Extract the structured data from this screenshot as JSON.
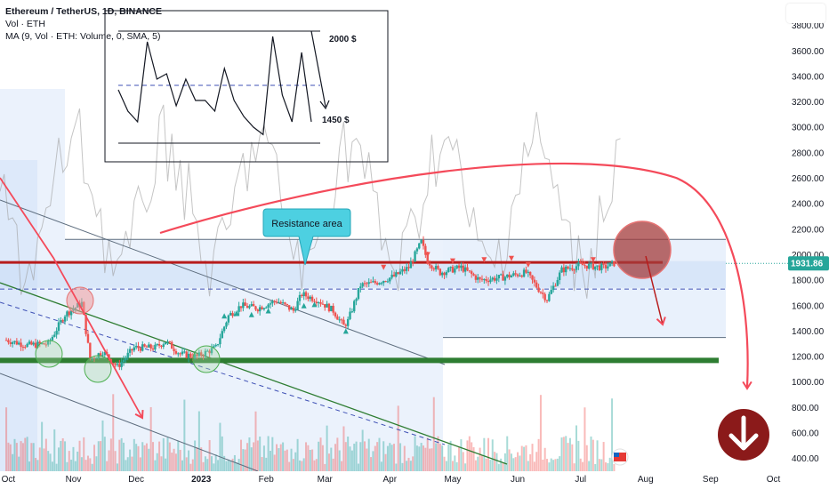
{
  "legend": {
    "symbol": "Ethereum / TetherUS, 1D, BINANCE",
    "volume": "Vol · ETH",
    "ma": "MA (9, Vol · ETH: Volume, 0, SMA, 5)"
  },
  "colors": {
    "up": "#26a69a",
    "down": "#ef5350",
    "resistance": "#b71c1c",
    "support": "#2e7d32",
    "arrow": "#f44a5a",
    "callout": "#4dd0e1",
    "price_badge": "#26a69a",
    "sell_badge": "#8b1a1a"
  },
  "chart_data": {
    "type": "candlestick",
    "y_axis": {
      "ticks": [
        400,
        600,
        800,
        1000,
        1200,
        1400,
        1600,
        1800,
        2000,
        2200,
        2400,
        2600,
        2800,
        3000,
        3200,
        3400,
        3600,
        3800
      ],
      "labels": [
        "400.00",
        "600.00",
        "800.00",
        "1000.00",
        "1200.00",
        "1400.00",
        "1600.00",
        "1800.00",
        "2000.00",
        "2200.00",
        "2400.00",
        "2600.00",
        "2800.00",
        "3000.00",
        "3200.00",
        "3400.00",
        "3600.00",
        "3800.00"
      ],
      "range": [
        300,
        4000
      ]
    },
    "x_axis": {
      "labels": [
        "Oct",
        "Nov",
        "Dec",
        "2023",
        "Feb",
        "Mar",
        "Apr",
        "May",
        "Jun",
        "Jul",
        "Aug",
        "Sep",
        "Oct"
      ]
    },
    "x_range": [
      "2022-09-27",
      "2023-10-08"
    ],
    "current_price": {
      "value": 1931.86,
      "label": "1931.86"
    },
    "price_path": [
      [
        "2022-09-30",
        1330
      ],
      [
        "2022-10-10",
        1290
      ],
      [
        "2022-10-20",
        1300
      ],
      [
        "2022-10-28",
        1530
      ],
      [
        "2022-11-05",
        1620
      ],
      [
        "2022-11-09",
        1180
      ],
      [
        "2022-11-15",
        1240
      ],
      [
        "2022-11-22",
        1120
      ],
      [
        "2022-11-30",
        1270
      ],
      [
        "2022-12-10",
        1270
      ],
      [
        "2022-12-15",
        1320
      ],
      [
        "2022-12-22",
        1220
      ],
      [
        "2022-12-30",
        1200
      ],
      [
        "2023-01-08",
        1270
      ],
      [
        "2023-01-14",
        1520
      ],
      [
        "2023-01-20",
        1600
      ],
      [
        "2023-01-28",
        1580
      ],
      [
        "2023-02-06",
        1640
      ],
      [
        "2023-02-14",
        1560
      ],
      [
        "2023-02-18",
        1690
      ],
      [
        "2023-02-26",
        1640
      ],
      [
        "2023-03-05",
        1560
      ],
      [
        "2023-03-10",
        1440
      ],
      [
        "2023-03-12",
        1480
      ],
      [
        "2023-03-18",
        1760
      ],
      [
        "2023-03-25",
        1780
      ],
      [
        "2023-04-03",
        1830
      ],
      [
        "2023-04-10",
        1900
      ],
      [
        "2023-04-16",
        2100
      ],
      [
        "2023-04-19",
        1950
      ],
      [
        "2023-04-25",
        1860
      ],
      [
        "2023-05-05",
        1900
      ],
      [
        "2023-05-14",
        1800
      ],
      [
        "2023-05-24",
        1820
      ],
      [
        "2023-06-05",
        1860
      ],
      [
        "2023-06-10",
        1750
      ],
      [
        "2023-06-15",
        1650
      ],
      [
        "2023-06-22",
        1880
      ],
      [
        "2023-07-01",
        1920
      ],
      [
        "2023-07-12",
        1900
      ],
      [
        "2023-07-17",
        1931.86
      ]
    ],
    "levels": {
      "resistance": 1940,
      "resistance_top": 2120,
      "support": 1170,
      "channel_low": 1350,
      "mid_dashed": 1730
    },
    "annotations": {
      "callout": "Resistance area",
      "inset_high": "2000 $",
      "inset_low": "1450 $"
    },
    "inset_path": [
      3.4,
      3.2,
      3.1,
      3.85,
      3.5,
      3.55,
      3.25,
      3.5,
      3.3,
      3.3,
      3.2,
      3.6,
      3.3,
      3.15,
      3.05,
      2.98,
      3.9,
      3.35,
      3.1,
      3.75,
      3.1
    ]
  }
}
